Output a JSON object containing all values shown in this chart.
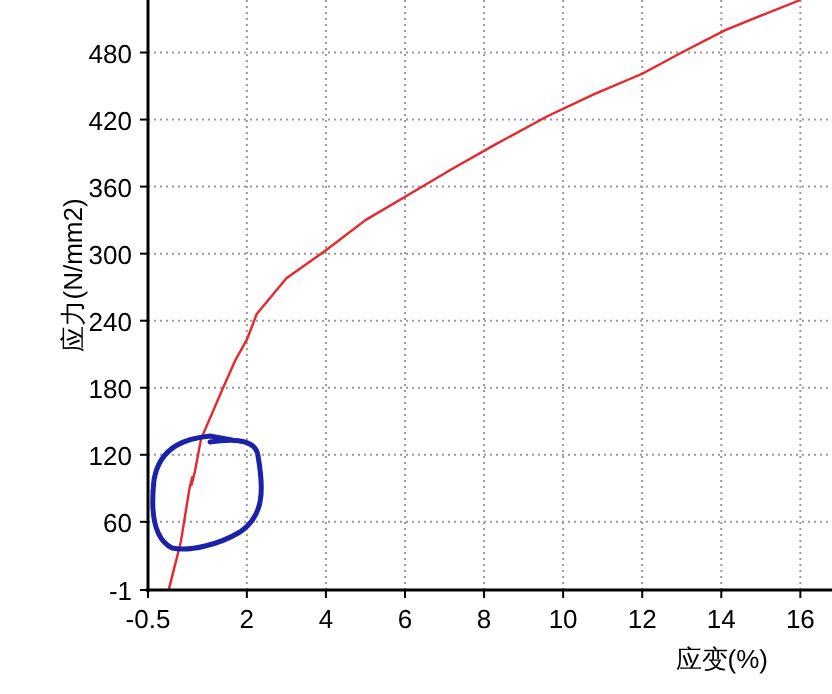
{
  "chart_data": {
    "type": "line",
    "xlabel": "应变(%)",
    "ylabel": "应力(N/mm2)",
    "xlim": [
      -0.5,
      16.8
    ],
    "ylim": [
      -1,
      527
    ],
    "xticks": [
      -0.5,
      2,
      4,
      6,
      8,
      10,
      12,
      14,
      16
    ],
    "yticks": [
      -1,
      60,
      120,
      180,
      240,
      300,
      360,
      420,
      480
    ],
    "grid": true,
    "series": [
      {
        "color": "#e8262b",
        "x": [
          0.03,
          0.33,
          0.55,
          0.62,
          0.6,
          0.68,
          0.84,
          1.4,
          1.7,
          2.0,
          2.25,
          3.0,
          4.0,
          5.0,
          6.1,
          7.2,
          8.3,
          9.6,
          10.8,
          12.0,
          13.0,
          14.1,
          15.0,
          16.0
        ],
        "values": [
          0,
          42,
          90,
          100,
          93,
          104,
          134,
          180,
          204,
          223,
          246,
          278,
          303,
          330,
          353,
          376,
          398,
          423,
          443,
          461,
          480,
          500,
          513,
          527
        ]
      }
    ]
  }
}
